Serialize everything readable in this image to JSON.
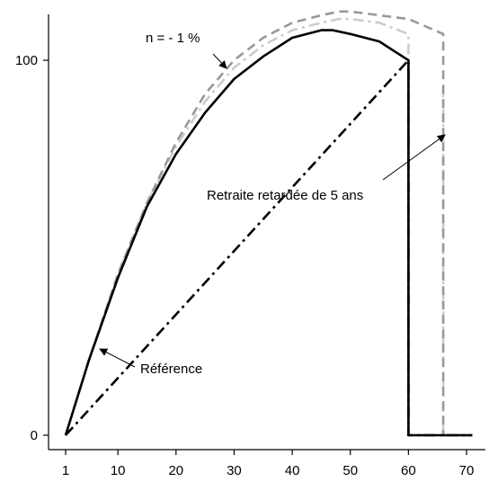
{
  "chart_data": {
    "type": "line",
    "title": "",
    "xlabel": "",
    "ylabel": "",
    "xlim": [
      1,
      71
    ],
    "ylim": [
      0,
      110
    ],
    "grid": false,
    "legend": "none",
    "x_ticks": [
      1,
      10,
      20,
      30,
      40,
      50,
      60,
      70
    ],
    "x_tick_labels": [
      "1",
      "10",
      "20",
      "30",
      "40",
      "50",
      "60",
      "70"
    ],
    "y_ticks": [
      0,
      100
    ],
    "y_tick_labels": [
      "0",
      "100"
    ],
    "series": [
      {
        "style": "solid",
        "color": "#000000",
        "x": [
          1,
          5,
          10,
          15,
          20,
          25,
          30,
          35,
          40,
          45,
          47,
          50,
          55,
          58,
          60,
          60,
          66,
          71
        ],
        "y": [
          0,
          20,
          42,
          61,
          75,
          86,
          95,
          101,
          106,
          108,
          108,
          107,
          105,
          102,
          100,
          0,
          0,
          0
        ]
      },
      {
        "style": "dash-dot",
        "color": "#000000",
        "x": [
          1,
          60,
          60,
          71
        ],
        "y": [
          0,
          100,
          0,
          0
        ]
      },
      {
        "style": "dashed",
        "color": "#999999",
        "x": [
          1,
          5,
          10,
          15,
          20,
          25,
          30,
          35,
          40,
          45,
          48,
          50,
          55,
          60,
          66,
          66,
          71
        ],
        "y": [
          0,
          20,
          43,
          62,
          78,
          91,
          100,
          106,
          110,
          112,
          113,
          113,
          112,
          111,
          107,
          0,
          0
        ]
      },
      {
        "style": "dash-dot",
        "color": "#cccccc",
        "x": [
          1,
          5,
          10,
          15,
          20,
          25,
          30,
          35,
          40,
          45,
          48,
          50,
          55,
          60,
          60,
          66,
          66
        ],
        "y": [
          0,
          20,
          43,
          62,
          77,
          89,
          98,
          104,
          108,
          110,
          111,
          111,
          110,
          107,
          0,
          0,
          94
        ]
      }
    ],
    "annotations": [
      {
        "text": "n = - 1 %",
        "arrow_to": [
          29,
          98
        ]
      },
      {
        "text": "Retraite retardée de 5 ans",
        "arrow_to": [
          66,
          79
        ]
      },
      {
        "text": "Référence",
        "arrow_to": [
          6,
          23
        ]
      }
    ]
  }
}
